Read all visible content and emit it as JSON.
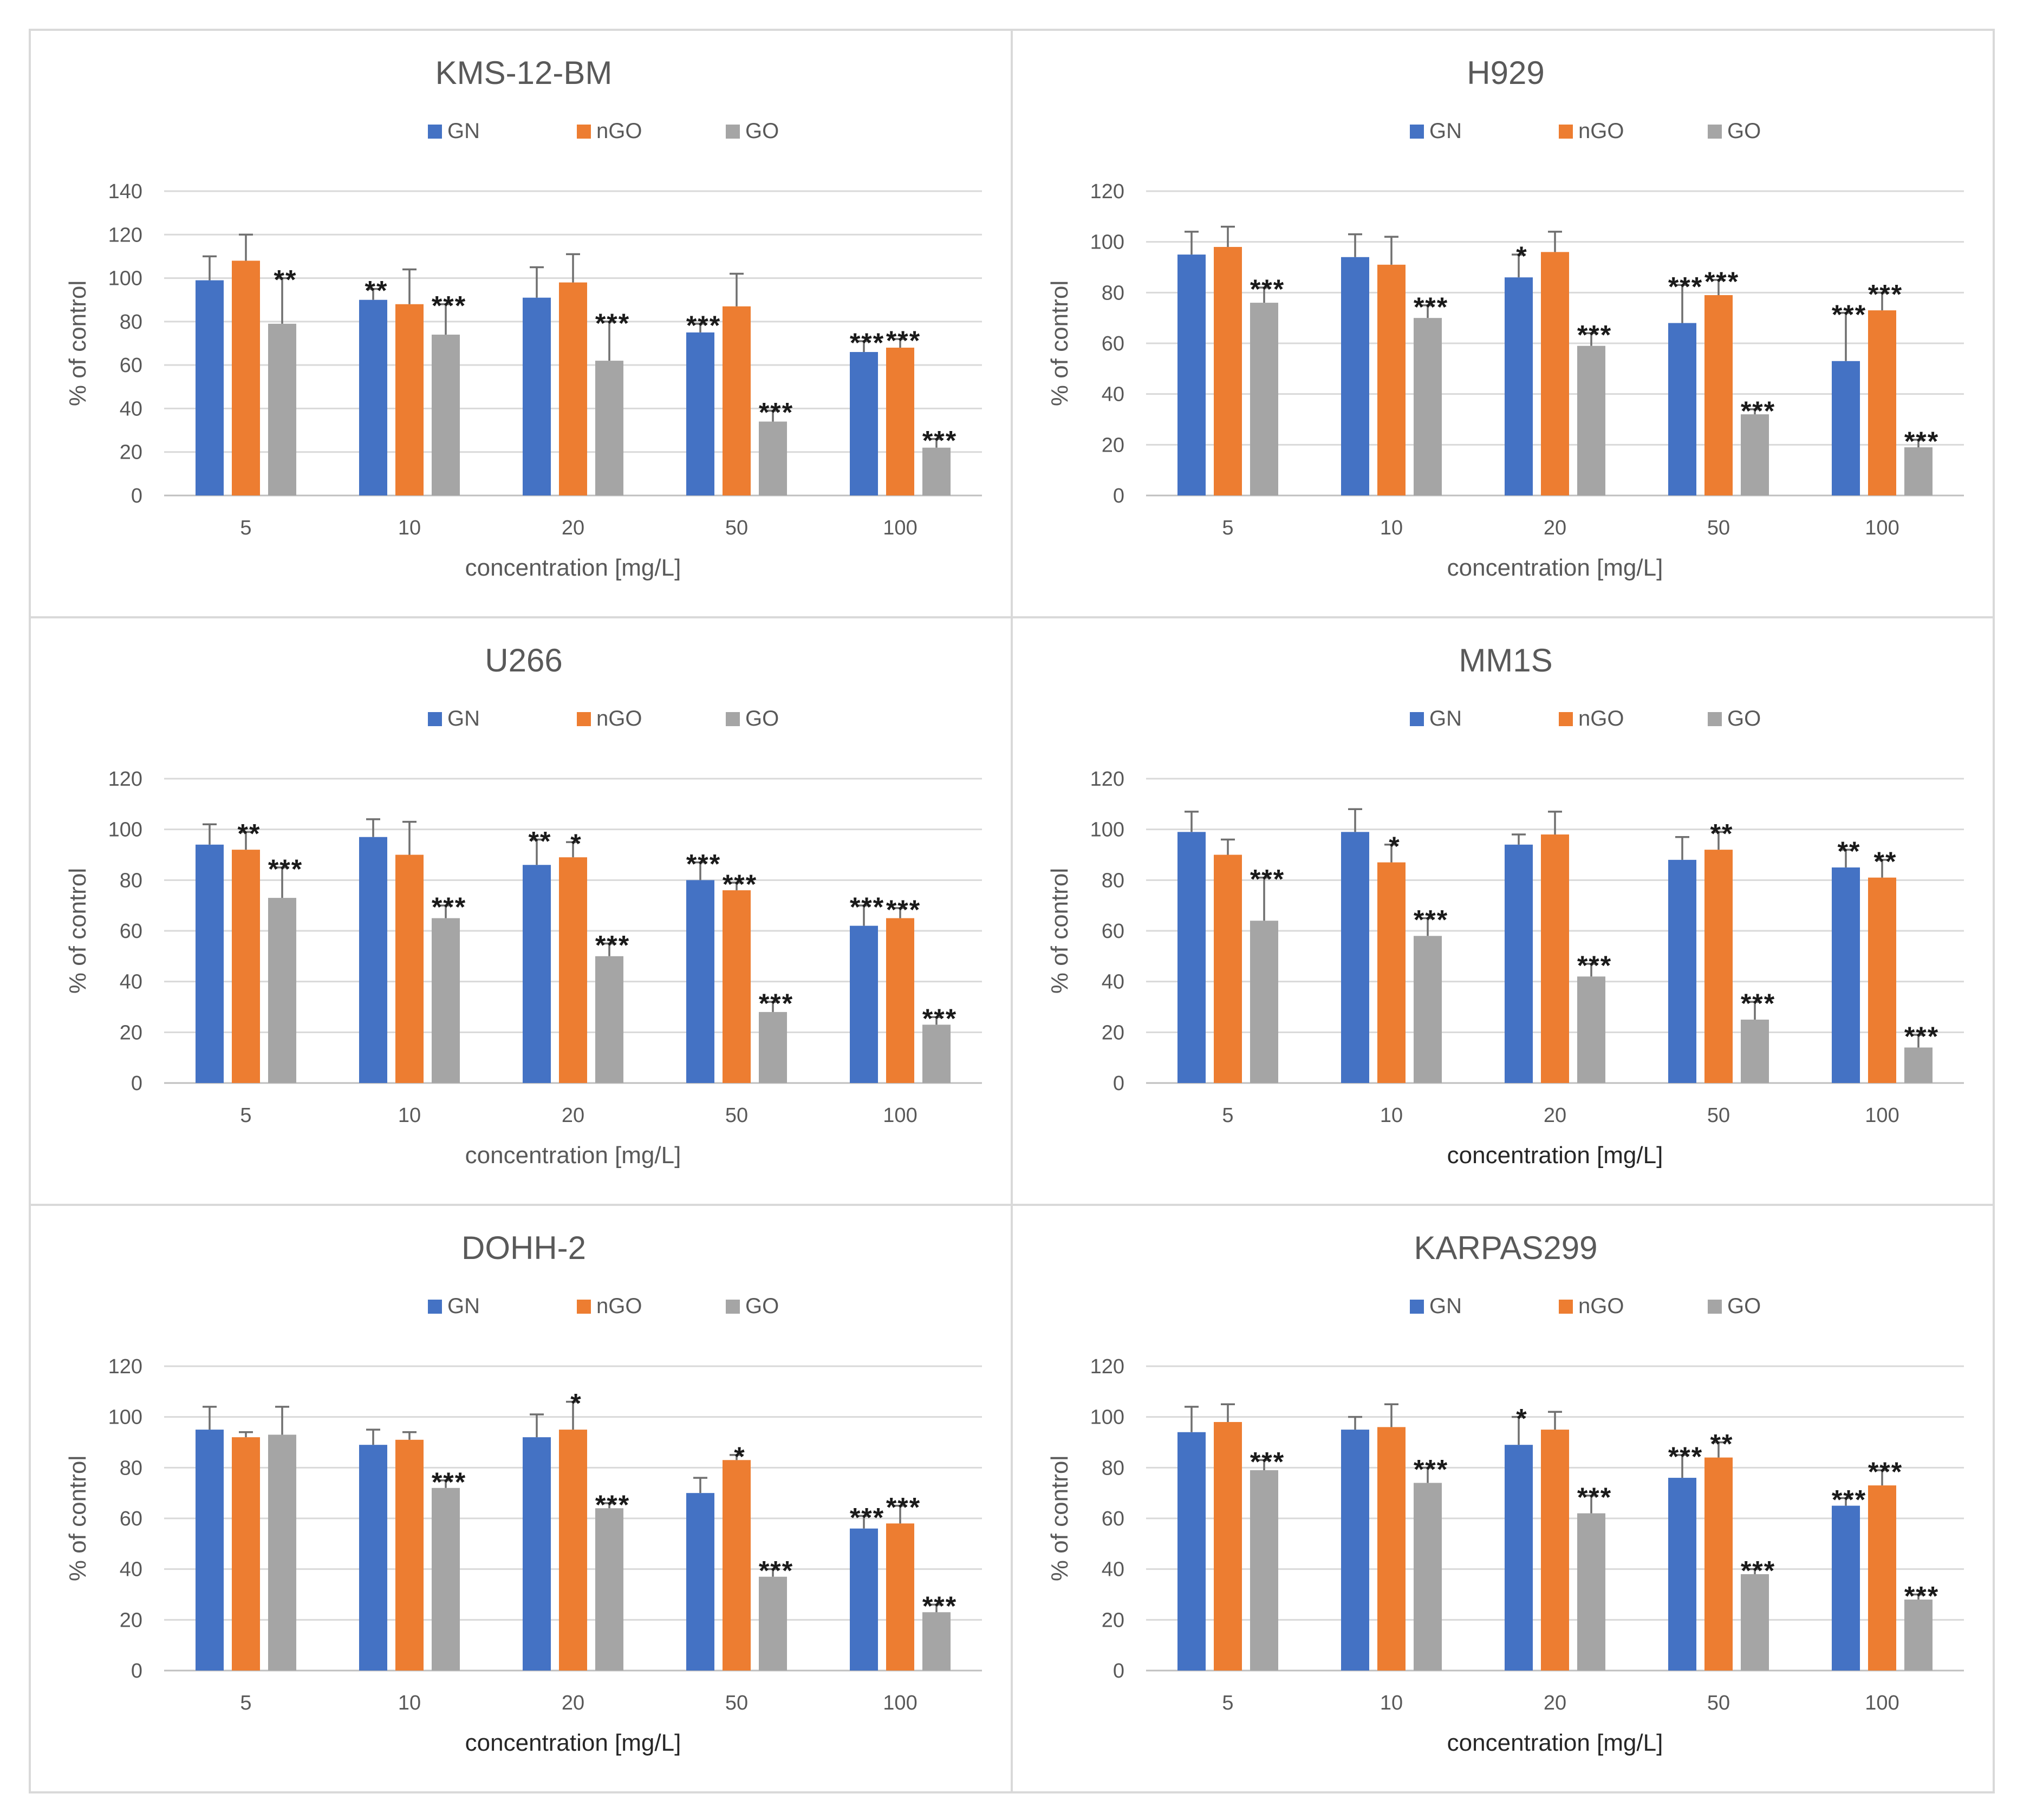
{
  "figure": {
    "background": "#ffffff"
  },
  "series_colors": {
    "GN": "#4472c4",
    "nGO": "#ed7d31",
    "GO": "#a5a5a5"
  },
  "chart_data": [
    {
      "type": "bar",
      "title": "KMS-12-BM",
      "xlabel": "concentration [mg/L]",
      "ylabel": "% of control",
      "ylim": [
        0,
        140
      ],
      "yticks": [
        0,
        20,
        40,
        60,
        80,
        100,
        120,
        140
      ],
      "grid": true,
      "legend": "top-center",
      "categories": [
        "5",
        "10",
        "20",
        "50",
        "100"
      ],
      "series": [
        {
          "name": "GN",
          "values": [
            99,
            90,
            91,
            75,
            66
          ],
          "errors": [
            11,
            5,
            14,
            4,
            5
          ],
          "significance": [
            "",
            "**",
            "",
            "***",
            "***"
          ]
        },
        {
          "name": "nGO",
          "values": [
            108,
            88,
            98,
            87,
            68
          ],
          "errors": [
            12,
            16,
            13,
            15,
            4
          ],
          "significance": [
            "",
            "",
            "",
            "",
            "***"
          ]
        },
        {
          "name": "GO",
          "values": [
            79,
            74,
            62,
            34,
            22
          ],
          "errors": [
            21,
            14,
            18,
            5,
            4
          ],
          "significance": [
            "**",
            "***",
            "***",
            "***",
            "***"
          ]
        }
      ]
    },
    {
      "type": "bar",
      "title": "H929",
      "xlabel": "concentration [mg/L]",
      "ylabel": "% of control",
      "ylim": [
        0,
        120
      ],
      "yticks": [
        0,
        20,
        40,
        60,
        80,
        100,
        120
      ],
      "grid": true,
      "legend": "top-center",
      "categories": [
        "5",
        "10",
        "20",
        "50",
        "100"
      ],
      "series": [
        {
          "name": "GN",
          "values": [
            95,
            94,
            86,
            68,
            53
          ],
          "errors": [
            9,
            9,
            9,
            15,
            19
          ],
          "significance": [
            "",
            "",
            "*",
            "***",
            "***"
          ]
        },
        {
          "name": "nGO",
          "values": [
            98,
            91,
            96,
            79,
            73
          ],
          "errors": [
            8,
            11,
            8,
            6,
            7
          ],
          "significance": [
            "",
            "",
            "",
            "***",
            "***"
          ]
        },
        {
          "name": "GO",
          "values": [
            76,
            70,
            59,
            32,
            19
          ],
          "errors": [
            6,
            5,
            5,
            2,
            3
          ],
          "significance": [
            "***",
            "***",
            "***",
            "***",
            "***"
          ]
        }
      ]
    },
    {
      "type": "bar",
      "title": "U266",
      "xlabel": "concentration [mg/L]",
      "ylabel": "% of control",
      "ylim": [
        0,
        120
      ],
      "yticks": [
        0,
        20,
        40,
        60,
        80,
        100,
        120
      ],
      "grid": true,
      "legend": "top-center",
      "categories": [
        "5",
        "10",
        "20",
        "50",
        "100"
      ],
      "series": [
        {
          "name": "GN",
          "values": [
            94,
            97,
            86,
            80,
            62
          ],
          "errors": [
            8,
            7,
            10,
            7,
            8
          ],
          "significance": [
            "",
            "",
            "**",
            "***",
            "***"
          ]
        },
        {
          "name": "nGO",
          "values": [
            92,
            90,
            89,
            76,
            65
          ],
          "errors": [
            7,
            13,
            6,
            3,
            4
          ],
          "significance": [
            "**",
            "",
            "*",
            "***",
            "***"
          ]
        },
        {
          "name": "GO",
          "values": [
            73,
            65,
            50,
            28,
            23
          ],
          "errors": [
            12,
            5,
            5,
            4,
            3
          ],
          "significance": [
            "***",
            "***",
            "***",
            "***",
            "***"
          ]
        }
      ]
    },
    {
      "type": "bar",
      "title": "MM1S",
      "xlabel": "concentration [mg/L]",
      "ylabel": "% of control",
      "ylim": [
        0,
        120
      ],
      "yticks": [
        0,
        20,
        40,
        60,
        80,
        100,
        120
      ],
      "grid": true,
      "legend": "top-center",
      "categories": [
        "5",
        "10",
        "20",
        "50",
        "100"
      ],
      "series": [
        {
          "name": "GN",
          "values": [
            99,
            99,
            94,
            88,
            85
          ],
          "errors": [
            8,
            9,
            4,
            9,
            7
          ],
          "significance": [
            "",
            "",
            "",
            "",
            "**"
          ]
        },
        {
          "name": "nGO",
          "values": [
            90,
            87,
            98,
            92,
            81
          ],
          "errors": [
            6,
            7,
            9,
            7,
            7
          ],
          "significance": [
            "",
            "*",
            "",
            "**",
            "**"
          ]
        },
        {
          "name": "GO",
          "values": [
            64,
            58,
            42,
            25,
            14
          ],
          "errors": [
            17,
            7,
            5,
            7,
            5
          ],
          "significance": [
            "***",
            "***",
            "***",
            "***",
            "***"
          ]
        }
      ]
    },
    {
      "type": "bar",
      "title": "DOHH-2",
      "xlabel": "concentration [mg/L]",
      "ylabel": "% of control",
      "ylim": [
        0,
        120
      ],
      "yticks": [
        0,
        20,
        40,
        60,
        80,
        100,
        120
      ],
      "grid": true,
      "legend": "top-center",
      "categories": [
        "5",
        "10",
        "20",
        "50",
        "100"
      ],
      "series": [
        {
          "name": "GN",
          "values": [
            95,
            89,
            92,
            70,
            56
          ],
          "errors": [
            9,
            6,
            9,
            6,
            5
          ],
          "significance": [
            "",
            "",
            "",
            "",
            "***"
          ]
        },
        {
          "name": "nGO",
          "values": [
            92,
            91,
            95,
            83,
            58
          ],
          "errors": [
            2,
            3,
            11,
            2,
            7
          ],
          "significance": [
            "",
            "",
            "*",
            "*",
            "***"
          ]
        },
        {
          "name": "GO",
          "values": [
            93,
            72,
            64,
            37,
            23
          ],
          "errors": [
            11,
            3,
            2,
            3,
            3
          ],
          "significance": [
            "",
            "***",
            "***",
            "***",
            "***"
          ]
        }
      ]
    },
    {
      "type": "bar",
      "title": "KARPAS299",
      "xlabel": "concentration [mg/L]",
      "ylabel": "% of control",
      "ylim": [
        0,
        120
      ],
      "yticks": [
        0,
        20,
        40,
        60,
        80,
        100,
        120
      ],
      "grid": true,
      "legend": "top-center",
      "categories": [
        "5",
        "10",
        "20",
        "50",
        "100"
      ],
      "series": [
        {
          "name": "GN",
          "values": [
            94,
            95,
            89,
            76,
            65
          ],
          "errors": [
            10,
            5,
            11,
            9,
            3
          ],
          "significance": [
            "",
            "",
            "*",
            "***",
            "***"
          ]
        },
        {
          "name": "nGO",
          "values": [
            98,
            96,
            95,
            84,
            73
          ],
          "errors": [
            7,
            9,
            7,
            6,
            6
          ],
          "significance": [
            "",
            "",
            "",
            "**",
            "***"
          ]
        },
        {
          "name": "GO",
          "values": [
            79,
            74,
            62,
            38,
            28
          ],
          "errors": [
            4,
            6,
            7,
            2,
            2
          ],
          "significance": [
            "***",
            "***",
            "***",
            "***",
            "***"
          ]
        }
      ]
    }
  ]
}
